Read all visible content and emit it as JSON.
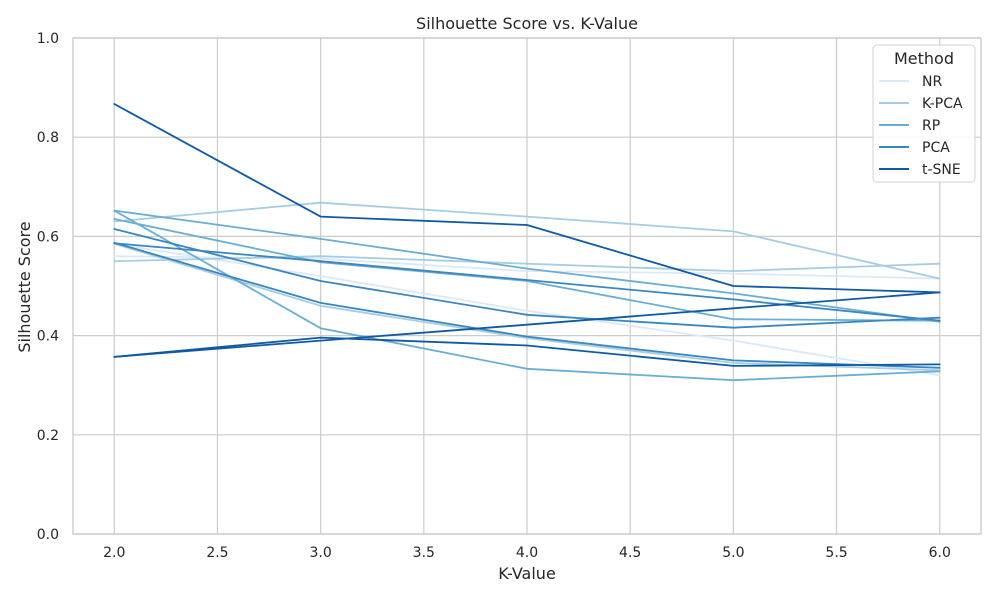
{
  "chart_data": {
    "type": "line",
    "title": "Silhouette Score vs. K-Value",
    "xlabel": "K-Value",
    "ylabel": "Silhouette Score",
    "xlim": [
      1.8,
      6.2
    ],
    "ylim": [
      0.0,
      1.0
    ],
    "x_ticks": [
      "2.0",
      "2.5",
      "3.0",
      "3.5",
      "4.0",
      "4.5",
      "5.0",
      "5.5",
      "6.0"
    ],
    "y_ticks": [
      "0.0",
      "0.2",
      "0.4",
      "0.6",
      "0.8",
      "1.0"
    ],
    "grid": true,
    "legend": {
      "title": "Method",
      "placement": "top-right",
      "entries": [
        {
          "name": "NR",
          "color": "#dbe9f6"
        },
        {
          "name": "K-PCA",
          "color": "#a6cde3"
        },
        {
          "name": "RP",
          "color": "#6aaed6"
        },
        {
          "name": "PCA",
          "color": "#3a87c0"
        },
        {
          "name": "t-SNE",
          "color": "#0f5aa2"
        }
      ]
    },
    "series": [
      {
        "name": "NR",
        "color": "#dbe9f6",
        "x": [
          2,
          3,
          4,
          5,
          6
        ],
        "values": [
          0.56,
          0.555,
          0.53,
          0.525,
          0.515
        ]
      },
      {
        "name": "NR",
        "color": "#dbe9f6",
        "x": [
          2,
          3,
          4,
          5,
          6
        ],
        "values": [
          0.585,
          0.52,
          0.45,
          0.39,
          0.32
        ]
      },
      {
        "name": "K-PCA",
        "color": "#a6cde3",
        "x": [
          2,
          3,
          4,
          5,
          6
        ],
        "values": [
          0.63,
          0.668,
          0.64,
          0.61,
          0.515
        ]
      },
      {
        "name": "K-PCA",
        "color": "#a6cde3",
        "x": [
          2,
          3,
          4,
          5,
          6
        ],
        "values": [
          0.55,
          0.56,
          0.545,
          0.53,
          0.545
        ]
      },
      {
        "name": "K-PCA",
        "color": "#a6cde3",
        "x": [
          2,
          3,
          4,
          5,
          6
        ],
        "values": [
          0.585,
          0.46,
          0.395,
          0.345,
          0.33
        ]
      },
      {
        "name": "RP",
        "color": "#6aaed6",
        "x": [
          2,
          3,
          4,
          5,
          6
        ],
        "values": [
          0.652,
          0.415,
          0.333,
          0.31,
          0.328
        ]
      },
      {
        "name": "RP",
        "color": "#6aaed6",
        "x": [
          2,
          3,
          4,
          5,
          6
        ],
        "values": [
          0.652,
          0.595,
          0.535,
          0.485,
          0.428
        ]
      },
      {
        "name": "RP",
        "color": "#6aaed6",
        "x": [
          2,
          3,
          4,
          5,
          6
        ],
        "values": [
          0.635,
          0.548,
          0.51,
          0.433,
          0.43
        ]
      },
      {
        "name": "PCA",
        "color": "#3a87c0",
        "x": [
          2,
          3,
          4,
          5,
          6
        ],
        "values": [
          0.586,
          0.55,
          0.512,
          0.473,
          0.43
        ]
      },
      {
        "name": "PCA",
        "color": "#3a87c0",
        "x": [
          2,
          3,
          4,
          5,
          6
        ],
        "values": [
          0.587,
          0.466,
          0.398,
          0.35,
          0.335
        ]
      },
      {
        "name": "PCA",
        "color": "#3a87c0",
        "x": [
          2,
          3,
          4,
          5,
          6
        ],
        "values": [
          0.615,
          0.51,
          0.442,
          0.416,
          0.436
        ]
      },
      {
        "name": "t-SNE",
        "color": "#0f5aa2",
        "x": [
          2,
          3,
          4,
          5,
          6
        ],
        "values": [
          0.867,
          0.64,
          0.623,
          0.5,
          0.487
        ]
      },
      {
        "name": "t-SNE",
        "color": "#0f5aa2",
        "x": [
          2,
          3,
          4,
          5,
          6
        ],
        "values": [
          0.357,
          0.39,
          0.422,
          0.455,
          0.487
        ]
      },
      {
        "name": "t-SNE",
        "color": "#0f5aa2",
        "x": [
          2,
          3,
          4,
          5,
          6
        ],
        "values": [
          0.357,
          0.396,
          0.38,
          0.339,
          0.342
        ]
      }
    ]
  }
}
